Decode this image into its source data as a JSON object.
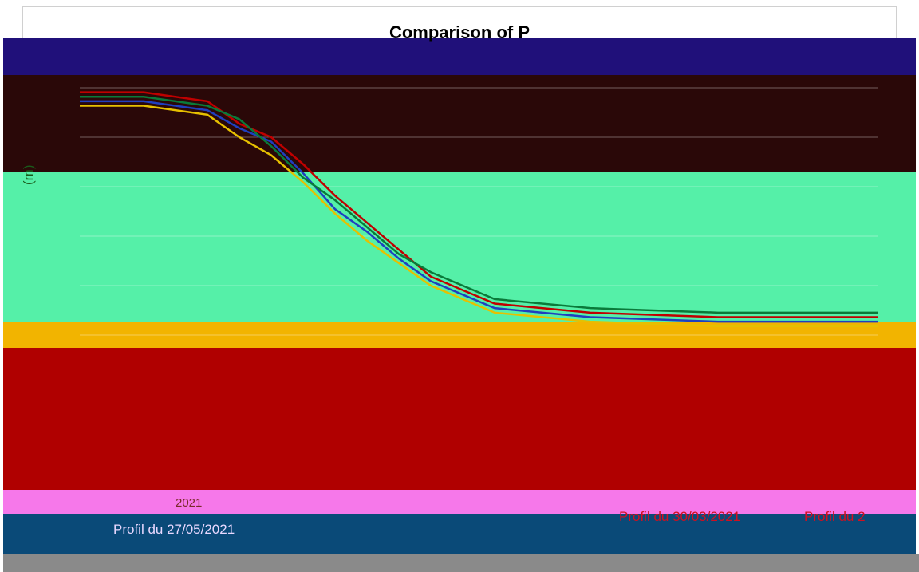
{
  "chart_data": {
    "type": "line",
    "title": "Comparison of P",
    "xlabel": "",
    "ylabel": "(m)",
    "series": [
      {
        "name": "",
        "color": "#c00000",
        "values": [
          [
            0,
            4.9
          ],
          [
            4,
            4.9
          ],
          [
            8,
            4.7
          ],
          [
            10,
            4.2
          ],
          [
            12,
            3.9
          ],
          [
            14,
            3.3
          ],
          [
            16,
            2.6
          ],
          [
            18,
            2.0
          ],
          [
            20,
            1.4
          ],
          [
            22,
            0.8
          ],
          [
            26,
            0.2
          ],
          [
            32,
            0.0
          ],
          [
            40,
            -0.1
          ],
          [
            50,
            -0.1
          ]
        ]
      },
      {
        "name": "",
        "color": "#1f3fbf",
        "values": [
          [
            0,
            4.7
          ],
          [
            4,
            4.7
          ],
          [
            8,
            4.5
          ],
          [
            10,
            4.1
          ],
          [
            12,
            3.8
          ],
          [
            14,
            3.1
          ],
          [
            16,
            2.3
          ],
          [
            18,
            1.8
          ],
          [
            20,
            1.2
          ],
          [
            22,
            0.7
          ],
          [
            26,
            0.1
          ],
          [
            32,
            -0.1
          ],
          [
            40,
            -0.2
          ],
          [
            50,
            -0.2
          ]
        ]
      },
      {
        "name": "",
        "color": "#0a7a3a",
        "values": [
          [
            0,
            4.8
          ],
          [
            4,
            4.8
          ],
          [
            8,
            4.6
          ],
          [
            10,
            4.3
          ],
          [
            12,
            3.7
          ],
          [
            14,
            3.0
          ],
          [
            16,
            2.5
          ],
          [
            18,
            1.9
          ],
          [
            20,
            1.3
          ],
          [
            22,
            0.9
          ],
          [
            26,
            0.3
          ],
          [
            32,
            0.1
          ],
          [
            40,
            0.0
          ],
          [
            50,
            0.0
          ]
        ]
      },
      {
        "name": "",
        "color": "#e6c000",
        "values": [
          [
            0,
            4.6
          ],
          [
            4,
            4.6
          ],
          [
            8,
            4.4
          ],
          [
            10,
            3.9
          ],
          [
            12,
            3.5
          ],
          [
            14,
            2.9
          ],
          [
            16,
            2.2
          ],
          [
            18,
            1.6
          ],
          [
            20,
            1.1
          ],
          [
            22,
            0.6
          ],
          [
            26,
            0.0
          ],
          [
            32,
            -0.2
          ],
          [
            40,
            -0.3
          ],
          [
            50,
            -0.3
          ]
        ]
      }
    ],
    "legend": {
      "entries": [
        "Profil du 27/05/2021",
        "Profil du 30/03/2021",
        "Profil du 2"
      ],
      "placement": "bottom"
    },
    "grid": true
  },
  "legend_year_fragment": "2021",
  "colors": {
    "band_navy": "#20107a",
    "band_maroon": "#2a0808",
    "band_green": "#55f0a8",
    "band_gold": "#f2b400",
    "band_red": "#b00000",
    "band_pink": "#f678ea",
    "band_teal": "#0a4a78",
    "band_grey": "#8a8a8a"
  }
}
